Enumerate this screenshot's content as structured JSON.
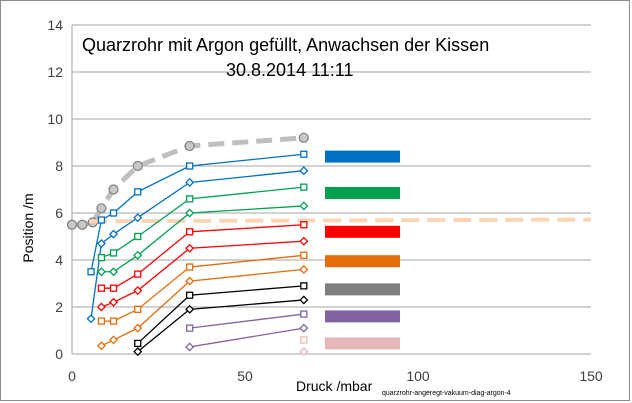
{
  "chart_data": {
    "type": "line",
    "title": "Quarzrohr mit Argon gefüllt, Anwachsen der Kissen",
    "subtitle": "30.8.2014  11:11",
    "xlabel": "Druck /mbar",
    "ylabel": "Position /m",
    "xlim": [
      0,
      150
    ],
    "ylim": [
      0,
      14
    ],
    "xticks": [
      0,
      50,
      100,
      150
    ],
    "yticks": [
      0,
      2,
      4,
      6,
      8,
      10,
      12,
      14
    ],
    "grid": "horizontal",
    "footnote": "quarzrohr-angeregt-vakuum-diag-argon-4",
    "colors": {
      "blue": "#0070c0",
      "green": "#00a050",
      "red": "#ff0000",
      "orange": "#e46c0a",
      "gray": "#7f7f7f",
      "purple": "#8064a2",
      "pink": "#e6b9b8",
      "dash_gray": "#bfbfbf",
      "peach": "#fbd5b5"
    },
    "dashed_series": [
      {
        "color_key": "dash_gray",
        "marker": "circle",
        "x": [
          0,
          3,
          6,
          8.5,
          12,
          19,
          34,
          67
        ],
        "y": [
          5.5,
          5.5,
          5.6,
          6.2,
          7.0,
          8.0,
          8.85,
          9.2
        ]
      },
      {
        "color_key": "peach",
        "marker": "none",
        "x": [
          5,
          150
        ],
        "y": [
          5.65,
          5.72
        ]
      }
    ],
    "series": [
      {
        "color_key": "blue",
        "marker": "square",
        "x": [
          5.5,
          8.5,
          12,
          19,
          34,
          67
        ],
        "y": [
          3.5,
          5.7,
          6.0,
          6.9,
          8.0,
          8.5
        ]
      },
      {
        "color_key": "blue",
        "marker": "diamond",
        "x": [
          5.5,
          8.5,
          12,
          19,
          34,
          67
        ],
        "y": [
          1.5,
          4.7,
          5.1,
          5.8,
          7.3,
          7.8
        ]
      },
      {
        "color_key": "green",
        "marker": "square",
        "x": [
          8.5,
          12,
          19,
          34,
          67
        ],
        "y": [
          4.1,
          4.3,
          5.0,
          6.6,
          7.1
        ]
      },
      {
        "color_key": "green",
        "marker": "diamond",
        "x": [
          8.5,
          12,
          19,
          34,
          67
        ],
        "y": [
          3.5,
          3.5,
          4.2,
          6.0,
          6.3
        ]
      },
      {
        "color_key": "red",
        "marker": "square",
        "x": [
          8.5,
          12,
          19,
          34,
          67
        ],
        "y": [
          2.8,
          2.8,
          3.4,
          5.2,
          5.5
        ]
      },
      {
        "color_key": "red",
        "marker": "diamond",
        "x": [
          8.5,
          12,
          19,
          34,
          67
        ],
        "y": [
          2.0,
          2.2,
          2.7,
          4.5,
          4.8
        ]
      },
      {
        "color_key": "orange",
        "marker": "square",
        "x": [
          8.5,
          12,
          19,
          34,
          67
        ],
        "y": [
          1.4,
          1.4,
          1.9,
          3.7,
          4.2
        ]
      },
      {
        "color_key": "orange",
        "marker": "diamond",
        "x": [
          8.5,
          12,
          19,
          34,
          67
        ],
        "y": [
          0.35,
          0.6,
          1.1,
          3.1,
          3.6
        ]
      },
      {
        "color_key": "black",
        "marker": "square",
        "x": [
          19,
          34,
          67
        ],
        "y": [
          0.45,
          2.5,
          2.9
        ]
      },
      {
        "color_key": "black",
        "marker": "diamond",
        "x": [
          19,
          34,
          67
        ],
        "y": [
          0.1,
          1.9,
          2.3
        ]
      },
      {
        "color_key": "purple",
        "marker": "square",
        "x": [
          34,
          67
        ],
        "y": [
          1.1,
          1.7
        ]
      },
      {
        "color_key": "purple",
        "marker": "diamond",
        "x": [
          34,
          67
        ],
        "y": [
          0.3,
          1.1
        ]
      },
      {
        "color_key": "pink",
        "marker": "square",
        "x": [
          67
        ],
        "y": [
          0.6
        ]
      },
      {
        "color_key": "pink",
        "marker": "diamond",
        "x": [
          67
        ],
        "y": [
          0.1
        ]
      }
    ],
    "legend_swatches": [
      {
        "color_key": "blue",
        "y": 8.4
      },
      {
        "color_key": "green",
        "y": 6.85
      },
      {
        "color_key": "red",
        "y": 5.2
      },
      {
        "color_key": "orange",
        "y": 3.95
      },
      {
        "color_key": "gray",
        "y": 2.75
      },
      {
        "color_key": "purple",
        "y": 1.6
      },
      {
        "color_key": "pink",
        "y": 0.45
      }
    ]
  }
}
